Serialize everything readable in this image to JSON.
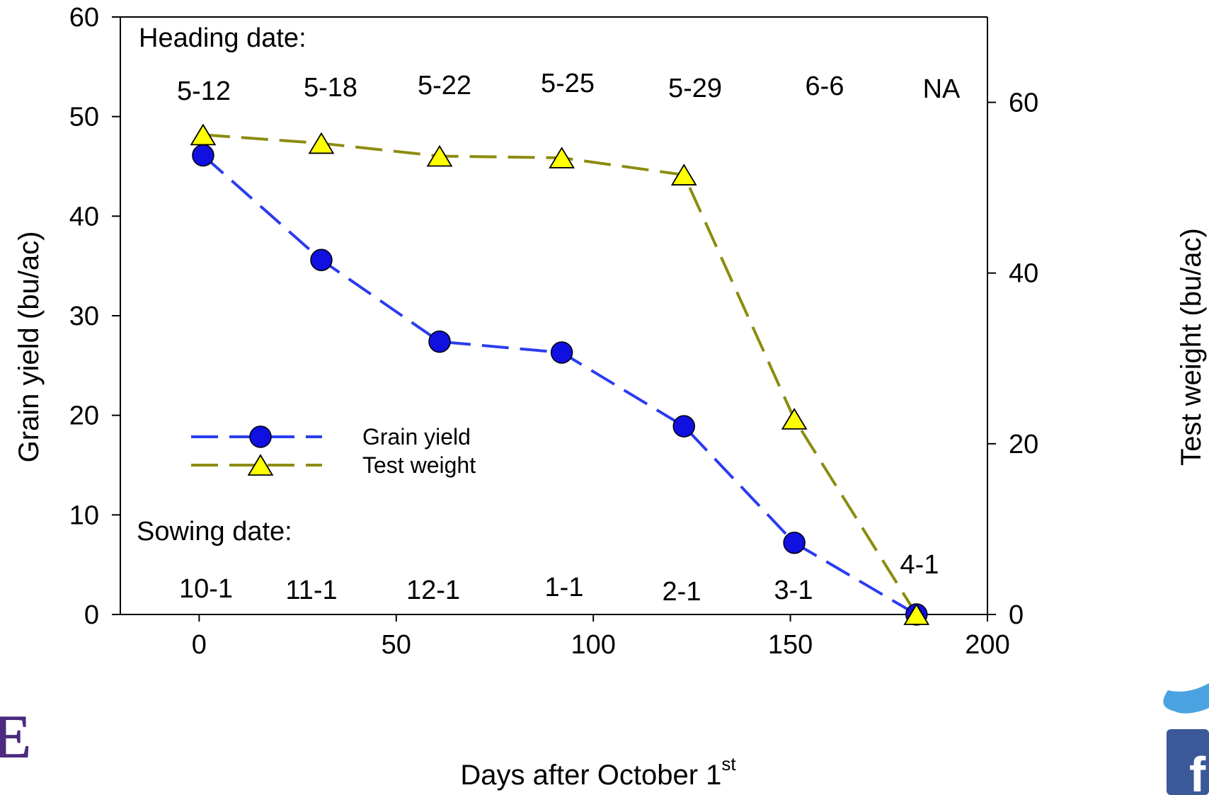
{
  "chart_data": {
    "type": "line",
    "xlabel": "Days after October 1",
    "xlabel_superscript": "st",
    "ylabel_left": "Grain yield (bu/ac)",
    "ylabel_right": "Test weight (bu/ac)",
    "xlim": [
      -20,
      200
    ],
    "ylim_left": [
      0,
      60
    ],
    "ylim_right": [
      0,
      70
    ],
    "x_ticks": [
      0,
      50,
      100,
      150,
      200
    ],
    "y_ticks_left": [
      0,
      10,
      20,
      30,
      40,
      50,
      60
    ],
    "y_ticks_right": [
      0,
      20,
      40,
      60
    ],
    "grid": false,
    "legend_position": "center-left",
    "series": [
      {
        "name": "Grain yield",
        "axis": "left",
        "color": "#1010e0",
        "line_color": "#2a3cf0",
        "marker": "circle",
        "line_style": "dashed",
        "x": [
          1,
          31,
          61,
          92,
          123,
          151,
          182
        ],
        "y": [
          46.1,
          35.6,
          27.4,
          26.3,
          18.9,
          7.2,
          0
        ]
      },
      {
        "name": "Test weight",
        "axis": "right",
        "color": "#ffff00",
        "line_color": "#8c8c10",
        "marker": "triangle",
        "line_style": "dashed",
        "x": [
          1,
          31,
          61,
          92,
          123,
          151,
          182
        ],
        "y": [
          56.2,
          55.2,
          53.7,
          53.5,
          51.5,
          22.9,
          0
        ]
      }
    ],
    "heading_label": "Heading date:",
    "heading_dates": [
      "5-12",
      "5-18",
      "5-22",
      "5-25",
      "5-29",
      "6-6",
      "NA"
    ],
    "sowing_label": "Sowing date:",
    "sowing_dates": [
      "10-1",
      "11-1",
      "12-1",
      "1-1",
      "2-1",
      "3-1",
      "4-1"
    ]
  },
  "decor": {
    "bottom_left_glyph": "E",
    "bottom_left_color": "#4b2a80",
    "twitter_icon": "twitter-bird-icon",
    "twitter_color": "#4aa3e0",
    "facebook_icon": "facebook-icon",
    "facebook_color": "#3b5998",
    "facebook_glyph": "f"
  }
}
